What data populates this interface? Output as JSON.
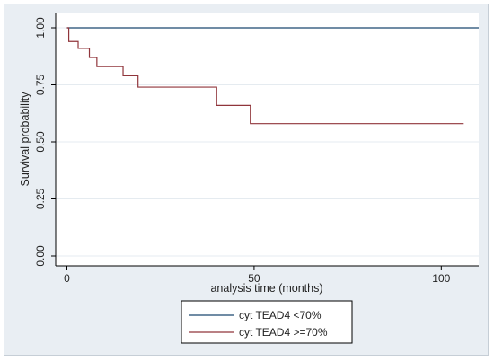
{
  "chart_data": {
    "type": "line",
    "subtype": "kaplan-meier step",
    "title": "",
    "xlabel": "analysis time (months)",
    "ylabel": "Survival probability",
    "xlim": [
      -3,
      110
    ],
    "ylim": [
      0,
      1
    ],
    "xticks": [
      0,
      50,
      100
    ],
    "xtick_labels": [
      "0",
      "50",
      "100"
    ],
    "yticks": [
      0,
      0.25,
      0.5,
      0.75,
      1.0
    ],
    "ytick_labels": [
      "0.00",
      "0.25",
      "0.50",
      "0.75",
      "1.00"
    ],
    "grid": "horizontal at y ticks",
    "legend_position": "bottom",
    "background_color": "#e9eef3",
    "plot_background_color": "#ffffff",
    "series": [
      {
        "name": "cyt TEAD4 <70%",
        "color": "#1a476f",
        "points": [
          [
            0,
            1.0
          ],
          [
            110,
            1.0
          ]
        ]
      },
      {
        "name": "cyt TEAD4 >=70%",
        "color": "#90353b",
        "points": [
          [
            0,
            1.0
          ],
          [
            0.5,
            0.94
          ],
          [
            3,
            0.91
          ],
          [
            6,
            0.87
          ],
          [
            8,
            0.83
          ],
          [
            15,
            0.79
          ],
          [
            19,
            0.74
          ],
          [
            40,
            0.66
          ],
          [
            49,
            0.58
          ],
          [
            106,
            0.58
          ]
        ]
      }
    ]
  }
}
